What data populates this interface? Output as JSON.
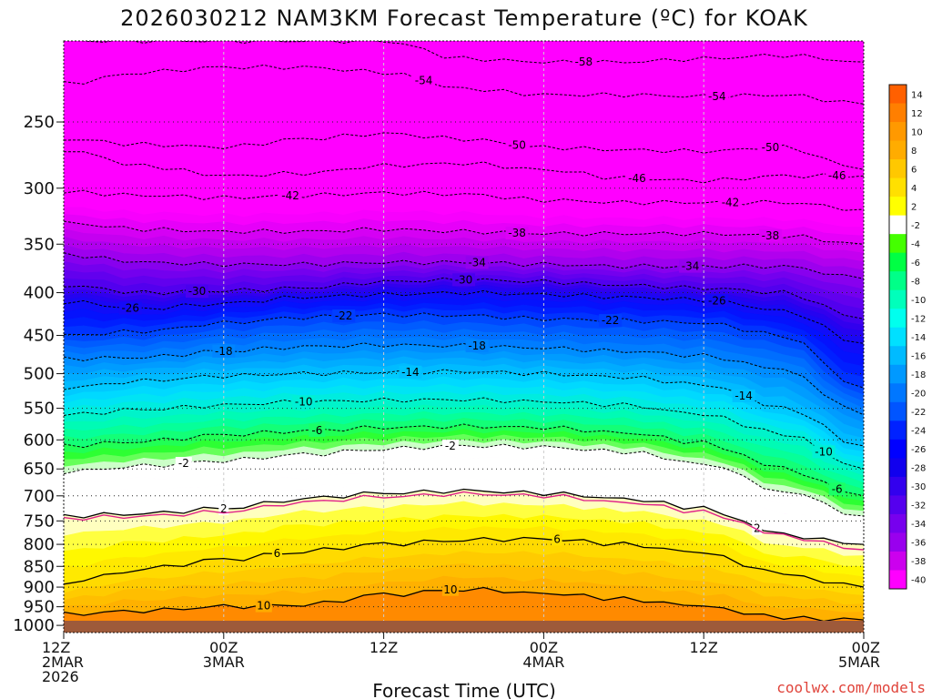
{
  "chart_data": {
    "type": "heatmap",
    "title": "2026030212 NAM3KM Forecast Temperature (ºC) for KOAK",
    "xlabel": "Forecast Time (UTC)",
    "ylabel": "",
    "credit": "coolwx.com/models",
    "x_axis": {
      "unit": "forecast hour",
      "range": [
        0,
        60
      ],
      "ticks": [
        {
          "hour": 0,
          "lines": [
            "12Z",
            "2MAR",
            "2026"
          ]
        },
        {
          "hour": 12,
          "lines": [
            "00Z",
            "3MAR"
          ]
        },
        {
          "hour": 24,
          "lines": [
            "12Z"
          ]
        },
        {
          "hour": 36,
          "lines": [
            "00Z",
            "4MAR"
          ]
        },
        {
          "hour": 48,
          "lines": [
            "12Z"
          ]
        },
        {
          "hour": 60,
          "lines": [
            "00Z",
            "5MAR"
          ]
        }
      ]
    },
    "y_axis": {
      "unit": "hPa",
      "scale": "log",
      "range": [
        1020,
        200
      ],
      "ticks": [
        250,
        300,
        350,
        400,
        450,
        500,
        550,
        600,
        650,
        700,
        750,
        800,
        850,
        900,
        950,
        1000
      ],
      "dotted_gridlines": true
    },
    "colorbar": {
      "labels": [
        "14",
        "12",
        "10",
        "8",
        "6",
        "4",
        "2",
        "-2",
        "-4",
        "-6",
        "-8",
        "-10",
        "-12",
        "-14",
        "-16",
        "-18",
        "-20",
        "-22",
        "-24",
        "-26",
        "-28",
        "-30",
        "-32",
        "-34",
        "-36",
        "-38",
        "-40"
      ],
      "colors": [
        "#ff6000",
        "#ff7f00",
        "#ff9900",
        "#ffac00",
        "#ffc800",
        "#ffe000",
        "#ffff00",
        "#ffffff",
        "#44ff00",
        "#00ff44",
        "#00ff88",
        "#00ffbb",
        "#00ffee",
        "#00e0ff",
        "#00bbff",
        "#0099ff",
        "#0077ff",
        "#0055ff",
        "#0022ff",
        "#0000ff",
        "#1100ee",
        "#3300ee",
        "#5500ee",
        "#7700ee",
        "#9900ee",
        "#cc00ee",
        "#ff00ff"
      ]
    },
    "contour_hours": [
      0,
      6,
      12,
      18,
      24,
      30,
      36,
      42,
      48,
      54,
      60
    ],
    "isotherms": [
      {
        "t": -58,
        "p": [
          200,
          200,
          200,
          200,
          200,
          210,
          212,
          212,
          210,
          208,
          212
        ],
        "label_hour": 39
      },
      {
        "t": -54,
        "p": [
          225,
          218,
          215,
          215,
          218,
          228,
          232,
          232,
          233,
          232,
          238
        ],
        "label_hour": 27,
        "label_hour2": 49
      },
      {
        "t": -50,
        "p": [
          262,
          266,
          268,
          262,
          258,
          262,
          268,
          270,
          271,
          268,
          285
        ],
        "label_hour": 34,
        "label_hour2": 53
      },
      {
        "t": -46,
        "p": [
          270,
          282,
          290,
          288,
          282,
          280,
          285,
          292,
          294,
          290,
          290
        ],
        "label_hour": 43,
        "label_hour2": 58
      },
      {
        "t": -42,
        "p": [
          303,
          306,
          308,
          306,
          304,
          305,
          310,
          312,
          312,
          312,
          318
        ],
        "label_hour": 17,
        "label_hour2": 50
      },
      {
        "t": -38,
        "p": [
          330,
          336,
          338,
          338,
          336,
          338,
          340,
          340,
          340,
          342,
          350
        ],
        "label_hour": 34,
        "label_hour2": 53
      },
      {
        "t": -34,
        "p": [
          360,
          368,
          370,
          370,
          368,
          368,
          370,
          372,
          372,
          372,
          385
        ],
        "label_hour": 31,
        "label_hour2": 47
      },
      {
        "t": -30,
        "p": [
          392,
          400,
          398,
          395,
          388,
          386,
          388,
          392,
          395,
          400,
          430
        ],
        "label_hour": 10,
        "label_hour2": 30
      },
      {
        "t": -26,
        "p": [
          410,
          418,
          412,
          405,
          402,
          400,
          402,
          405,
          408,
          420,
          460
        ],
        "label_hour": 5,
        "label_hour2": 49
      },
      {
        "t": -22,
        "p": [
          450,
          445,
          435,
          428,
          425,
          426,
          430,
          432,
          435,
          450,
          520
        ],
        "label_hour": 21,
        "label_hour2": 41
      },
      {
        "t": -18,
        "p": [
          480,
          478,
          470,
          464,
          462,
          463,
          466,
          470,
          476,
          495,
          560
        ],
        "label_hour": 12,
        "label_hour2": 31
      },
      {
        "t": -14,
        "p": [
          520,
          510,
          503,
          500,
          498,
          497,
          500,
          505,
          515,
          548,
          610
        ],
        "label_hour": 26,
        "label_hour2": 51
      },
      {
        "t": -10,
        "p": [
          560,
          552,
          545,
          540,
          538,
          537,
          540,
          545,
          560,
          590,
          650
        ],
        "label_hour": 18,
        "label_hour2": 57
      },
      {
        "t": -6,
        "p": [
          610,
          602,
          592,
          585,
          580,
          578,
          580,
          588,
          605,
          650,
          700
        ],
        "label_hour": 19,
        "label_hour2": 58
      },
      {
        "t": -2,
        "p": [
          655,
          645,
          635,
          625,
          615,
          610,
          612,
          620,
          640,
          690,
          740
        ],
        "label_hour": 9,
        "label_hour2": 29
      },
      {
        "t": 2,
        "p": [
          740,
          735,
          725,
          705,
          695,
          690,
          695,
          705,
          725,
          780,
          800
        ],
        "label_hour": 12,
        "label_hour2": 52
      },
      {
        "t": 6,
        "p": [
          890,
          855,
          835,
          815,
          800,
          790,
          788,
          800,
          820,
          870,
          900
        ],
        "label_hour": 16,
        "label_hour2": 37
      },
      {
        "t": 10,
        "p": [
          970,
          960,
          950,
          945,
          920,
          905,
          915,
          930,
          950,
          980,
          985
        ],
        "label_hour": 15,
        "label_hour2": 29
      }
    ],
    "zero_line_p": [
      745,
      740,
      732,
      712,
      702,
      696,
      700,
      712,
      732,
      782,
      812
    ]
  }
}
